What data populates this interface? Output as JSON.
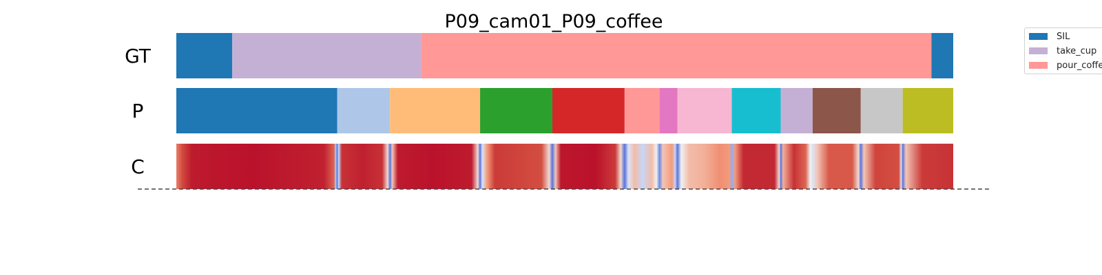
{
  "chart_data": {
    "type": "segmentation",
    "title": "P09_cam01_P09_coffee",
    "x_range": [
      0,
      1
    ],
    "rows": [
      {
        "label": "GT",
        "segments": [
          {
            "start": 0.0,
            "end": 0.072,
            "color": "#1f77b4",
            "action": "SIL"
          },
          {
            "start": 0.072,
            "end": 0.315,
            "color": "#c5b0d5",
            "action": "take_cup"
          },
          {
            "start": 0.315,
            "end": 0.972,
            "color": "#ff9896",
            "action": "pour_coffee"
          },
          {
            "start": 0.972,
            "end": 1.0,
            "color": "#1f77b4",
            "action": "SIL"
          }
        ]
      },
      {
        "label": "P",
        "segments": [
          {
            "start": 0.0,
            "end": 0.207,
            "color": "#1f77b4"
          },
          {
            "start": 0.207,
            "end": 0.275,
            "color": "#aec7e8"
          },
          {
            "start": 0.275,
            "end": 0.391,
            "color": "#ffbb78"
          },
          {
            "start": 0.391,
            "end": 0.484,
            "color": "#2ca02c"
          },
          {
            "start": 0.484,
            "end": 0.577,
            "color": "#d62728"
          },
          {
            "start": 0.577,
            "end": 0.622,
            "color": "#ff9896"
          },
          {
            "start": 0.622,
            "end": 0.645,
            "color": "#e377c2"
          },
          {
            "start": 0.645,
            "end": 0.715,
            "color": "#f7b6d2"
          },
          {
            "start": 0.715,
            "end": 0.778,
            "color": "#17becf"
          },
          {
            "start": 0.778,
            "end": 0.819,
            "color": "#c5b0d5"
          },
          {
            "start": 0.819,
            "end": 0.881,
            "color": "#8c564b"
          },
          {
            "start": 0.881,
            "end": 0.935,
            "color": "#c7c7c7"
          },
          {
            "start": 0.935,
            "end": 1.0,
            "color": "#bcbd22"
          }
        ]
      },
      {
        "label": "C",
        "type": "confidence",
        "colormap": "coolwarm",
        "points": [
          [
            0.0,
            0.75
          ],
          [
            0.008,
            0.85
          ],
          [
            0.02,
            0.95
          ],
          [
            0.05,
            0.96
          ],
          [
            0.1,
            0.97
          ],
          [
            0.15,
            0.95
          ],
          [
            0.19,
            0.94
          ],
          [
            0.203,
            0.8
          ],
          [
            0.205,
            0.35
          ],
          [
            0.207,
            0.1
          ],
          [
            0.209,
            0.4
          ],
          [
            0.213,
            0.9
          ],
          [
            0.24,
            0.94
          ],
          [
            0.265,
            0.9
          ],
          [
            0.272,
            0.55
          ],
          [
            0.275,
            0.1
          ],
          [
            0.278,
            0.6
          ],
          [
            0.285,
            0.95
          ],
          [
            0.33,
            0.97
          ],
          [
            0.38,
            0.95
          ],
          [
            0.388,
            0.55
          ],
          [
            0.391,
            0.1
          ],
          [
            0.394,
            0.45
          ],
          [
            0.4,
            0.7
          ],
          [
            0.41,
            0.88
          ],
          [
            0.44,
            0.86
          ],
          [
            0.47,
            0.84
          ],
          [
            0.48,
            0.55
          ],
          [
            0.484,
            0.1
          ],
          [
            0.488,
            0.6
          ],
          [
            0.495,
            0.96
          ],
          [
            0.54,
            0.97
          ],
          [
            0.565,
            0.88
          ],
          [
            0.572,
            0.55
          ],
          [
            0.577,
            0.1
          ],
          [
            0.582,
            0.45
          ],
          [
            0.59,
            0.62
          ],
          [
            0.6,
            0.4
          ],
          [
            0.612,
            0.62
          ],
          [
            0.618,
            0.5
          ],
          [
            0.622,
            0.15
          ],
          [
            0.626,
            0.6
          ],
          [
            0.638,
            0.7
          ],
          [
            0.642,
            0.4
          ],
          [
            0.645,
            0.1
          ],
          [
            0.65,
            0.5
          ],
          [
            0.66,
            0.62
          ],
          [
            0.68,
            0.65
          ],
          [
            0.7,
            0.72
          ],
          [
            0.712,
            0.7
          ],
          [
            0.715,
            0.25
          ],
          [
            0.719,
            0.7
          ],
          [
            0.73,
            0.92
          ],
          [
            0.77,
            0.92
          ],
          [
            0.776,
            0.55
          ],
          [
            0.778,
            0.1
          ],
          [
            0.781,
            0.65
          ],
          [
            0.795,
            0.9
          ],
          [
            0.81,
            0.8
          ],
          [
            0.816,
            0.5
          ],
          [
            0.819,
            0.45
          ],
          [
            0.825,
            0.6
          ],
          [
            0.84,
            0.82
          ],
          [
            0.87,
            0.82
          ],
          [
            0.878,
            0.55
          ],
          [
            0.881,
            0.1
          ],
          [
            0.885,
            0.6
          ],
          [
            0.9,
            0.86
          ],
          [
            0.93,
            0.84
          ],
          [
            0.933,
            0.45
          ],
          [
            0.935,
            0.1
          ],
          [
            0.939,
            0.6
          ],
          [
            0.96,
            0.88
          ],
          [
            1.0,
            0.9
          ]
        ]
      }
    ],
    "legend": {
      "placement": "top-right",
      "entries": [
        {
          "label": "SIL",
          "color": "#1f77b4"
        },
        {
          "label": "take_cup",
          "color": "#c5b0d5"
        },
        {
          "label": "pour_coffee",
          "color": "#ff9896"
        }
      ]
    },
    "baseline": {
      "style": "dashed",
      "color": "#444444"
    }
  }
}
